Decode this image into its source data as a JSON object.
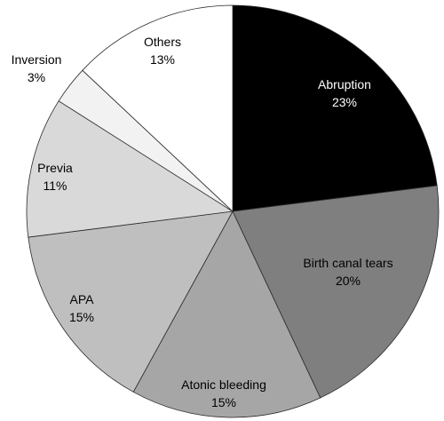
{
  "chart_data": {
    "type": "pie",
    "title": "",
    "slices": [
      {
        "label": "Abruption",
        "value_label": "23%",
        "value": 23,
        "color": "#000000",
        "text_color": "#ffffff"
      },
      {
        "label": "Birth canal tears",
        "value_label": "20%",
        "value": 20,
        "color": "#7f7f7f",
        "text_color": "#000000"
      },
      {
        "label": "Atonic bleeding",
        "value_label": "15%",
        "value": 15,
        "color": "#a6a6a6",
        "text_color": "#000000"
      },
      {
        "label": "APA",
        "value_label": "15%",
        "value": 15,
        "color": "#bfbfbf",
        "text_color": "#000000"
      },
      {
        "label": "Previa",
        "value_label": "11%",
        "value": 11,
        "color": "#d9d9d9",
        "text_color": "#000000"
      },
      {
        "label": "Inversion",
        "value_label": "3%",
        "value": 3,
        "color": "#f2f2f2",
        "text_color": "#000000"
      },
      {
        "label": "Others",
        "value_label": "13%",
        "value": 13,
        "color": "#ffffff",
        "text_color": "#000000"
      }
    ],
    "start_angle": "12 o'clock",
    "direction": "clockwise",
    "legend": "none"
  }
}
